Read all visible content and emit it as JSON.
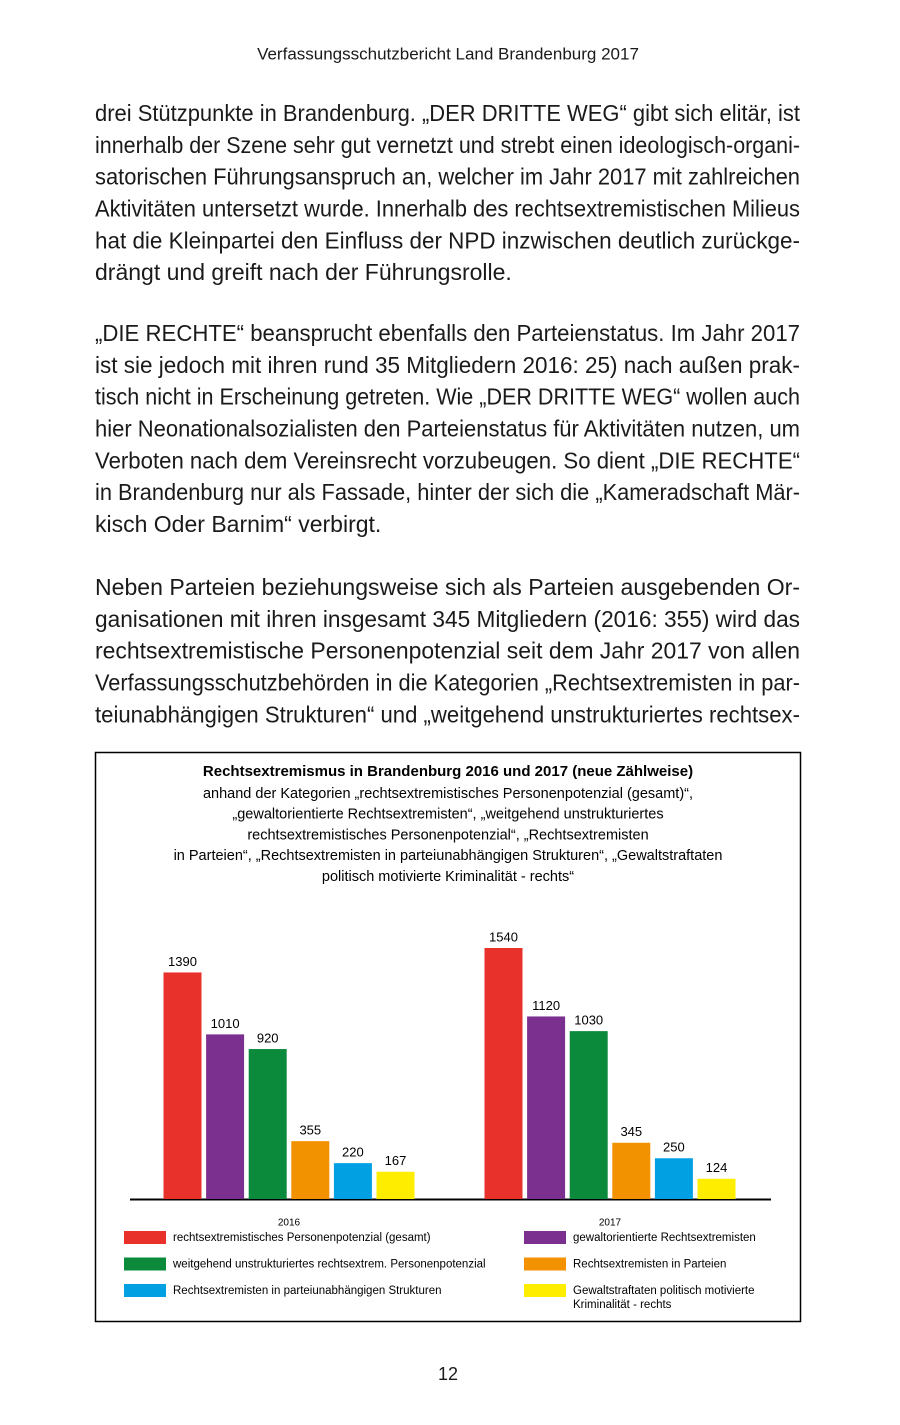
{
  "header": "Verfassungsschutzbericht Land Brandenburg 2017",
  "paragraphs": [
    {
      "lines": [
        "drei Stützpunkte in Brandenburg. „DER DRITTE WEG“ gibt sich elitär, ist",
        "innerhalb der Szene sehr gut vernetzt und strebt einen ideologisch-organi-",
        "satorischen Führungsanspruch an, welcher im Jahr 2017 mit zahlreichen",
        "Aktivitäten untersetzt wurde. Innerhalb des rechtsextremistischen Milieus",
        "hat die Kleinpartei den Einfluss der NPD inzwischen deutlich zurückge-",
        "drängt und greift nach der Führungsrolle."
      ]
    },
    {
      "lines": [
        "„DIE RECHTE“ beansprucht ebenfalls den Parteienstatus. Im Jahr 2017",
        "ist sie jedoch mit ihren rund 35 Mitgliedern 2016: 25) nach außen prak-",
        "tisch nicht in Erscheinung getreten. Wie „DER DRITTE WEG“ wollen auch",
        "hier Neonationalsozialisten den Parteienstatus für Aktivitäten nutzen, um",
        "Verboten nach dem Vereinsrecht vorzubeugen. So dient „DIE RECHTE“",
        "in Brandenburg nur als Fassade, hinter der sich die „Kameradschaft Mär-",
        "kisch Oder Barnim“ verbirgt."
      ]
    },
    {
      "lines": [
        "Neben Parteien beziehungsweise sich als Parteien ausgebenden Or-",
        "ganisationen mit ihren insgesamt 345 Mitgliedern (2016: 355) wird das",
        "rechtsextremistische Personenpotenzial seit dem Jahr 2017 von allen",
        "Verfassungsschutzbehörden in die Kategorien „Rechtsextremisten in par-",
        "teiunabhängigen Strukturen“ und „weitgehend unstrukturiertes rechtsex-"
      ]
    }
  ],
  "chart_data": {
    "type": "bar",
    "title": "Rechtsextremismus in Brandenburg 2016 und 2017 (neue Zählweise)",
    "subtitle": [
      "anhand der Kategorien „rechtsextremistisches Personenpotenzial (gesamt)“,",
      "„gewaltorientierte Rechtsextremisten“, „weitgehend unstrukturiertes",
      "rechtsextremistisches Personenpotenzial“, „Rechtsextremisten",
      "in Parteien“, „Rechtsextremisten in parteiunabhängigen Strukturen“, „Gewaltstraftaten",
      "politisch motivierte Kriminalität - rechts“"
    ],
    "categories": [
      "2016",
      "2017"
    ],
    "series": [
      {
        "name": "rechtsextremistisches Personenpotenzial (gesamt)",
        "color": "#e8312a",
        "values": [
          1390,
          1540
        ]
      },
      {
        "name": "gewaltorientierte Rechtsextremisten",
        "color": "#7b2f8e",
        "values": [
          1010,
          1120
        ]
      },
      {
        "name": "weitgehend unstrukturiertes rechtsextrem. Personenpotenzial",
        "color": "#0a8a3a",
        "values": [
          920,
          1030
        ]
      },
      {
        "name": "Rechtsextremisten in Parteien",
        "color": "#f39200",
        "values": [
          355,
          345
        ]
      },
      {
        "name": "Rechtsextremisten in parteiunabhängigen Strukturen",
        "color": "#00a0e3",
        "values": [
          220,
          250
        ]
      },
      {
        "name": "Gewaltstraftaten politisch motivierte Kriminalität - rechts",
        "color": "#ffed00",
        "values": [
          167,
          124
        ]
      }
    ]
  },
  "page_number": "12"
}
